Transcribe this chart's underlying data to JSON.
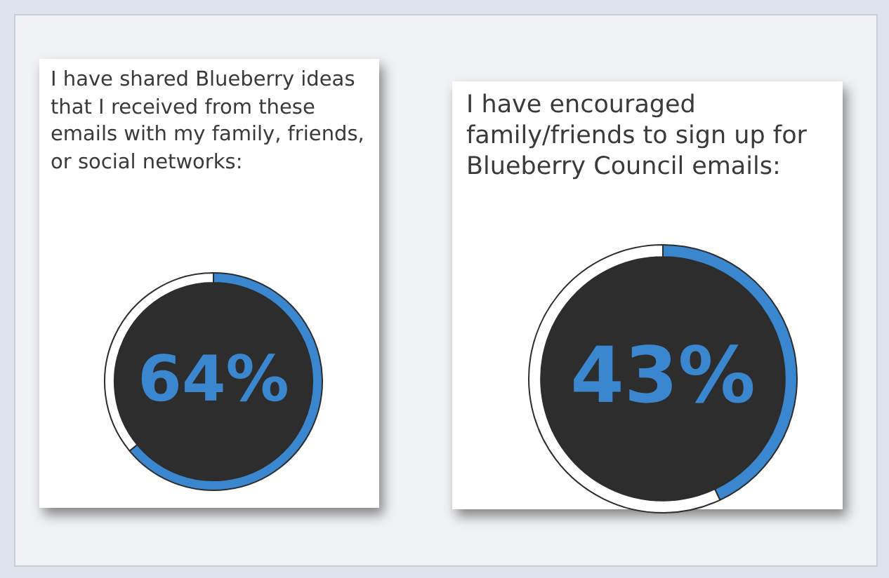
{
  "chart_data": [
    {
      "type": "donut",
      "title": "I have shared Blueberry ideas that I received from these emails with my family, friends, or social networks:",
      "categories": [
        null,
        null
      ],
      "values": [
        64,
        36
      ],
      "colors": [
        "#3a87cf",
        "#ffffff"
      ],
      "value_labels": [
        "64%",
        null
      ],
      "legend": false
    },
    {
      "type": "donut",
      "title": "I have encouraged family/friends to sign up for Blueberry Council emails:",
      "categories": [
        null,
        null
      ],
      "values": [
        43,
        57
      ],
      "colors": [
        "#3a87cf",
        "#ffffff"
      ],
      "value_labels": [
        "43%",
        null
      ],
      "legend": false
    }
  ]
}
